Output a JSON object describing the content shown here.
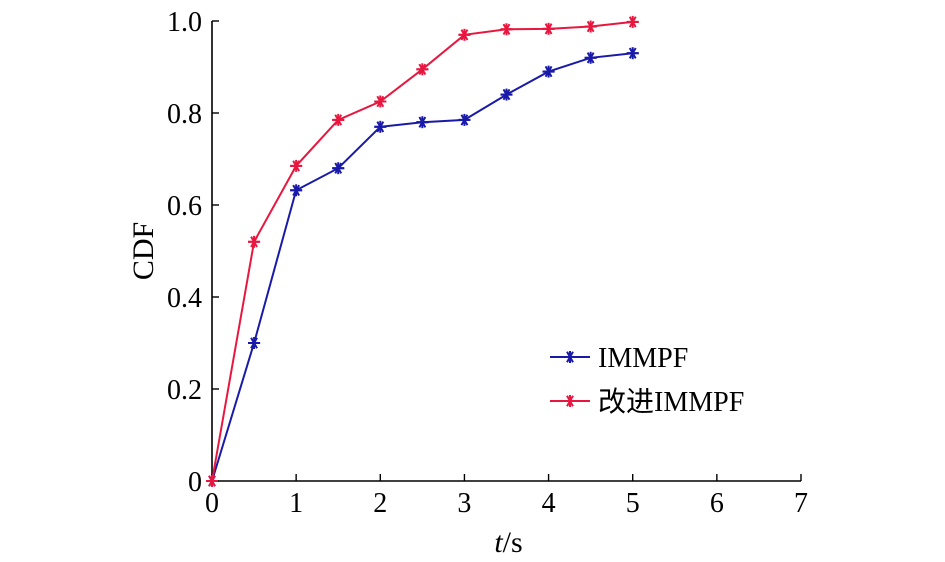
{
  "chart_data": {
    "type": "line",
    "title": "",
    "xlabel_italic": "t",
    "xlabel_suffix": "/s",
    "ylabel": "CDF",
    "xlim": [
      0,
      7
    ],
    "ylim": [
      0,
      1.0
    ],
    "x_ticks": [
      0,
      1,
      2,
      3,
      4,
      5,
      6,
      7
    ],
    "x_tick_labels": [
      "0",
      "1",
      "2",
      "3",
      "4",
      "5",
      "6",
      "7"
    ],
    "y_ticks": [
      0,
      0.2,
      0.4,
      0.6,
      0.8,
      1.0
    ],
    "y_tick_labels": [
      "0",
      "0.2",
      "0.4",
      "0.6",
      "0.8",
      "1.0"
    ],
    "grid": false,
    "legend_position": "lower-right",
    "x": [
      0,
      0.5,
      1,
      1.5,
      2,
      2.5,
      3,
      3.5,
      4,
      4.5,
      5
    ],
    "series": [
      {
        "name": "IMMPF",
        "color": "#1a1aa8",
        "marker": "asterisk",
        "values": [
          0,
          0.3,
          0.632,
          0.68,
          0.77,
          0.78,
          0.785,
          0.84,
          0.89,
          0.92,
          0.93
        ]
      },
      {
        "name": "改进IMMPF",
        "color": "#e8173f",
        "marker": "asterisk",
        "values": [
          0,
          0.52,
          0.685,
          0.785,
          0.825,
          0.895,
          0.97,
          0.982,
          0.983,
          0.988,
          0.998
        ]
      }
    ]
  }
}
